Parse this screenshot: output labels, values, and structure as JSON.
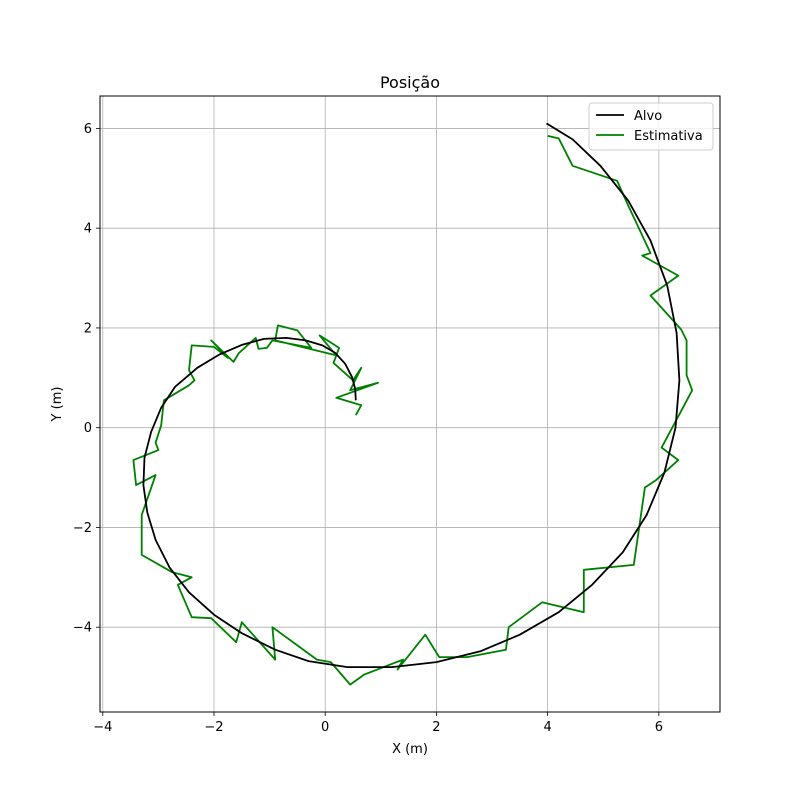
{
  "chart_data": {
    "type": "line",
    "title": "Posição",
    "xlabel": "X (m)",
    "ylabel": "Y (m)",
    "xlim": [
      -4.05,
      7.1
    ],
    "ylim": [
      -5.7,
      6.65
    ],
    "xticks": [
      -4,
      -2,
      0,
      2,
      4,
      6
    ],
    "yticks": [
      -4,
      -2,
      0,
      2,
      4,
      6
    ],
    "xtick_labels": [
      "−4",
      "−2",
      "0",
      "2",
      "4",
      "6"
    ],
    "ytick_labels": [
      "−4",
      "−2",
      "0",
      "2",
      "4",
      "6"
    ],
    "grid": true,
    "legend_position": "top-right",
    "series": [
      {
        "name": "Alvo",
        "color": "#000000",
        "points": [
          [
            0.55,
            0.55
          ],
          [
            0.54,
            0.78
          ],
          [
            0.48,
            1.02
          ],
          [
            0.36,
            1.28
          ],
          [
            0.18,
            1.5
          ],
          [
            -0.05,
            1.65
          ],
          [
            -0.35,
            1.75
          ],
          [
            -0.7,
            1.8
          ],
          [
            -1.1,
            1.78
          ],
          [
            -1.5,
            1.66
          ],
          [
            -1.9,
            1.47
          ],
          [
            -2.3,
            1.2
          ],
          [
            -2.7,
            0.82
          ],
          [
            -2.95,
            0.4
          ],
          [
            -3.13,
            -0.08
          ],
          [
            -3.25,
            -0.6
          ],
          [
            -3.27,
            -1.15
          ],
          [
            -3.2,
            -1.7
          ],
          [
            -3.05,
            -2.25
          ],
          [
            -2.8,
            -2.8
          ],
          [
            -2.45,
            -3.3
          ],
          [
            -2.0,
            -3.75
          ],
          [
            -1.5,
            -4.12
          ],
          [
            -0.9,
            -4.45
          ],
          [
            -0.3,
            -4.68
          ],
          [
            0.4,
            -4.8
          ],
          [
            1.2,
            -4.8
          ],
          [
            2.0,
            -4.7
          ],
          [
            2.8,
            -4.48
          ],
          [
            3.5,
            -4.15
          ],
          [
            4.2,
            -3.7
          ],
          [
            4.8,
            -3.15
          ],
          [
            5.35,
            -2.5
          ],
          [
            5.78,
            -1.75
          ],
          [
            6.1,
            -0.9
          ],
          [
            6.3,
            0.0
          ],
          [
            6.37,
            0.95
          ],
          [
            6.32,
            1.9
          ],
          [
            6.15,
            2.85
          ],
          [
            5.85,
            3.75
          ],
          [
            5.45,
            4.55
          ],
          [
            4.95,
            5.25
          ],
          [
            4.45,
            5.78
          ],
          [
            3.98,
            6.1
          ]
        ]
      },
      {
        "name": "Estimativa",
        "color": "#008000",
        "points": [
          [
            0.55,
            0.25
          ],
          [
            0.65,
            0.45
          ],
          [
            0.2,
            0.6
          ],
          [
            0.95,
            0.9
          ],
          [
            0.45,
            0.75
          ],
          [
            0.65,
            1.2
          ],
          [
            0.5,
            0.95
          ],
          [
            0.15,
            1.3
          ],
          [
            0.25,
            1.6
          ],
          [
            -0.1,
            1.85
          ],
          [
            0.2,
            1.45
          ],
          [
            -0.9,
            1.75
          ],
          [
            -0.85,
            2.05
          ],
          [
            -0.5,
            1.95
          ],
          [
            -0.25,
            1.6
          ],
          [
            -0.95,
            1.75
          ],
          [
            -1.05,
            1.6
          ],
          [
            -1.2,
            1.58
          ],
          [
            -1.25,
            1.8
          ],
          [
            -1.55,
            1.5
          ],
          [
            -1.65,
            1.32
          ],
          [
            -2.05,
            1.75
          ],
          [
            -1.75,
            1.4
          ],
          [
            -2.0,
            1.62
          ],
          [
            -2.4,
            1.65
          ],
          [
            -2.45,
            1.15
          ],
          [
            -2.35,
            0.95
          ],
          [
            -2.45,
            0.85
          ],
          [
            -2.9,
            0.55
          ],
          [
            -2.95,
            0.05
          ],
          [
            -3.05,
            -0.3
          ],
          [
            -3.0,
            -0.45
          ],
          [
            -3.45,
            -0.65
          ],
          [
            -3.4,
            -1.15
          ],
          [
            -3.05,
            -0.95
          ],
          [
            -3.3,
            -1.75
          ],
          [
            -3.3,
            -2.55
          ],
          [
            -2.75,
            -2.9
          ],
          [
            -2.4,
            -3.0
          ],
          [
            -2.65,
            -3.15
          ],
          [
            -2.4,
            -3.8
          ],
          [
            -2.05,
            -3.82
          ],
          [
            -1.6,
            -4.3
          ],
          [
            -1.5,
            -3.9
          ],
          [
            -0.9,
            -4.65
          ],
          [
            -0.95,
            -4.0
          ],
          [
            -0.15,
            -4.65
          ],
          [
            0.1,
            -4.7
          ],
          [
            0.45,
            -5.15
          ],
          [
            0.7,
            -4.95
          ],
          [
            1.4,
            -4.65
          ],
          [
            1.3,
            -4.85
          ],
          [
            1.8,
            -4.15
          ],
          [
            2.05,
            -4.6
          ],
          [
            2.55,
            -4.6
          ],
          [
            3.25,
            -4.45
          ],
          [
            3.3,
            -4.0
          ],
          [
            3.9,
            -3.5
          ],
          [
            4.65,
            -3.7
          ],
          [
            4.65,
            -2.85
          ],
          [
            5.55,
            -2.75
          ],
          [
            5.75,
            -1.2
          ],
          [
            5.95,
            -1.05
          ],
          [
            6.35,
            -0.65
          ],
          [
            6.05,
            -0.4
          ],
          [
            6.6,
            0.75
          ],
          [
            6.5,
            1.05
          ],
          [
            6.5,
            1.75
          ],
          [
            6.4,
            1.97
          ],
          [
            5.85,
            2.65
          ],
          [
            6.35,
            3.05
          ],
          [
            5.7,
            3.45
          ],
          [
            5.85,
            3.5
          ],
          [
            5.45,
            4.45
          ],
          [
            5.25,
            4.95
          ],
          [
            4.45,
            5.25
          ],
          [
            4.2,
            5.8
          ],
          [
            4.0,
            5.85
          ]
        ]
      }
    ]
  }
}
